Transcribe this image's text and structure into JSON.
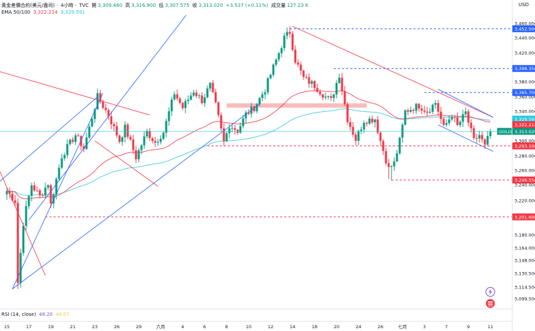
{
  "header": {
    "symbol_desc": "黃金差價合約(美元/盎司)",
    "interval": "4小時",
    "source": "TVC",
    "open_label": "開",
    "open": "3,309.460",
    "high_label": "高",
    "high": "3,316.900",
    "low_label": "低",
    "low": "3,307.575",
    "close_label": "收",
    "close": "3,313.020",
    "change": "+3.537 (+0.11%)",
    "volume_label": "成交量",
    "volume": "127.23 K",
    "currency": "USD"
  },
  "ema_legend": {
    "label": "EMA 50/100",
    "ema50": "3,322.214",
    "ema100": "3,329.591"
  },
  "rsi_legend": {
    "label": "RSI (14, close)",
    "value": "48.20",
    "signal": "44.07"
  },
  "tool_icons": [
    "lightning-icon",
    "alert-flag-icon"
  ],
  "colors": {
    "up": "#089981",
    "down": "#f23645",
    "ema50": "#f23645",
    "ema100": "#26c6da",
    "trendline_blue": "#2962ff",
    "trendline_red": "#f23645",
    "level_red": "#f23645",
    "level_blue": "#2962ff",
    "zone": "#f7a6a6",
    "current_price_line": "#26c6da"
  },
  "chart_data": {
    "type": "candlestick",
    "price_axis": {
      "ticks": [
        "3,460.000",
        "3,440.000",
        "3,420.000",
        "3,400.000",
        "3,380.000",
        "3,360.000",
        "3,340.000",
        "3,320.000",
        "3,300.000",
        "3,280.000",
        "3,260.000",
        "3,240.000",
        "3,220.000",
        "3,200.000",
        "3,180.000",
        "3,164.000",
        "3,148.000",
        "3,130.500",
        "3,114.500",
        "3,099.500"
      ],
      "tick_values": [
        3460,
        3440,
        3420,
        3400,
        3380,
        3360,
        3340,
        3320,
        3300,
        3280,
        3260,
        3240,
        3220,
        3200,
        3180,
        3164,
        3148,
        3130.5,
        3114.5,
        3099.5
      ]
    },
    "time_axis": {
      "ticks": [
        "15",
        "17",
        "19",
        "21",
        "23",
        "26",
        "29",
        "六月",
        "4",
        "6",
        "8",
        "10",
        "12",
        "14",
        "18",
        "20",
        "24",
        "26",
        "七月",
        "3",
        "7",
        "9",
        "11"
      ],
      "tick_index": [
        0,
        8,
        16,
        24,
        32,
        40,
        48,
        56,
        64,
        72,
        80,
        88,
        96,
        104,
        112,
        120,
        128,
        136,
        144,
        152,
        160,
        168,
        176
      ]
    },
    "price_labels": [
      {
        "text": "3,452.500",
        "value": 3452.5,
        "kind": "level-blue"
      },
      {
        "text": "3,398.350",
        "value": 3398.35,
        "kind": "level-blue"
      },
      {
        "text": "3,365.700",
        "value": 3365.7,
        "kind": "level-blue"
      },
      {
        "text": "3,329.591",
        "value": 3329.591,
        "kind": "ema100"
      },
      {
        "text": "3,322.214",
        "value": 3322.214,
        "kind": "ema50"
      },
      {
        "text": "3,313.020",
        "value": 3313.02,
        "kind": "last"
      },
      {
        "text": "3,293.198",
        "value": 3293.198,
        "kind": "level-red"
      },
      {
        "text": "3,246.550",
        "value": 3246.55,
        "kind": "level-red"
      },
      {
        "text": "3,201.680",
        "value": 3201.68,
        "kind": "level-red"
      }
    ],
    "symbol_tag": "GOLD",
    "levels": [
      {
        "value": 3452.5,
        "from": 103,
        "color": "blue"
      },
      {
        "value": 3398.35,
        "from": 119,
        "color": "blue"
      },
      {
        "value": 3365.7,
        "from": 152,
        "color": "blue"
      },
      {
        "value": 3293.198,
        "from": 73,
        "color": "red"
      },
      {
        "value": 3246.55,
        "from": 140,
        "color": "red"
      },
      {
        "value": 3201.68,
        "from": 14,
        "color": "red"
      }
    ],
    "zone": {
      "from": 80,
      "to": 131,
      "low": 3345,
      "high": 3351
    },
    "anchors": [
      {
        "i": 0,
        "p": 3232
      },
      {
        "i": 3,
        "p": 3220
      },
      {
        "i": 4,
        "p": 3120
      },
      {
        "i": 6,
        "p": 3195
      },
      {
        "i": 9,
        "p": 3240
      },
      {
        "i": 12,
        "p": 3225
      },
      {
        "i": 15,
        "p": 3242
      },
      {
        "i": 16,
        "p": 3215
      },
      {
        "i": 20,
        "p": 3280
      },
      {
        "i": 25,
        "p": 3308
      },
      {
        "i": 28,
        "p": 3290
      },
      {
        "i": 33,
        "p": 3360
      },
      {
        "i": 37,
        "p": 3335
      },
      {
        "i": 41,
        "p": 3300
      },
      {
        "i": 43,
        "p": 3318
      },
      {
        "i": 47,
        "p": 3278
      },
      {
        "i": 51,
        "p": 3312
      },
      {
        "i": 54,
        "p": 3298
      },
      {
        "i": 57,
        "p": 3312
      },
      {
        "i": 61,
        "p": 3365
      },
      {
        "i": 64,
        "p": 3345
      },
      {
        "i": 68,
        "p": 3368
      },
      {
        "i": 71,
        "p": 3355
      },
      {
        "i": 74,
        "p": 3375
      },
      {
        "i": 76,
        "p": 3348
      },
      {
        "i": 79,
        "p": 3298
      },
      {
        "i": 81,
        "p": 3322
      },
      {
        "i": 84,
        "p": 3314
      },
      {
        "i": 87,
        "p": 3336
      },
      {
        "i": 90,
        "p": 3345
      },
      {
        "i": 94,
        "p": 3370
      },
      {
        "i": 97,
        "p": 3400
      },
      {
        "i": 101,
        "p": 3440
      },
      {
        "i": 103,
        "p": 3448
      },
      {
        "i": 105,
        "p": 3410
      },
      {
        "i": 108,
        "p": 3385
      },
      {
        "i": 112,
        "p": 3375
      },
      {
        "i": 116,
        "p": 3360
      },
      {
        "i": 118,
        "p": 3355
      },
      {
        "i": 121,
        "p": 3390
      },
      {
        "i": 124,
        "p": 3330
      },
      {
        "i": 127,
        "p": 3302
      },
      {
        "i": 130,
        "p": 3328
      },
      {
        "i": 134,
        "p": 3330
      },
      {
        "i": 136,
        "p": 3300
      },
      {
        "i": 139,
        "p": 3262
      },
      {
        "i": 141,
        "p": 3270
      },
      {
        "i": 143,
        "p": 3300
      },
      {
        "i": 145,
        "p": 3340
      },
      {
        "i": 150,
        "p": 3348
      },
      {
        "i": 153,
        "p": 3340
      },
      {
        "i": 156,
        "p": 3352
      },
      {
        "i": 159,
        "p": 3318
      },
      {
        "i": 162,
        "p": 3336
      },
      {
        "i": 164,
        "p": 3320
      },
      {
        "i": 167,
        "p": 3338
      },
      {
        "i": 170,
        "p": 3300
      },
      {
        "i": 172,
        "p": 3308
      },
      {
        "i": 174,
        "p": 3292
      },
      {
        "i": 176,
        "p": 3313
      }
    ],
    "trendlines": [
      {
        "a": [
          2,
          3112
        ],
        "b": [
          92,
          3350
        ],
        "color": "blue"
      },
      {
        "a": [
          -8,
          3228
        ],
        "b": [
          33,
          3360
        ],
        "color": "blue"
      },
      {
        "a": [
          2,
          3112
        ],
        "b": [
          35,
          3365
        ],
        "color": "blue"
      },
      {
        "a": [
          8,
          3198
        ],
        "b": [
          67,
          3480
        ],
        "color": "blue"
      },
      {
        "a": [
          -8,
          3400
        ],
        "b": [
          52,
          3335
        ],
        "color": "red"
      },
      {
        "a": [
          -8,
          3305
        ],
        "b": [
          14,
          3128
        ],
        "color": "red"
      },
      {
        "a": [
          104,
          3456
        ],
        "b": [
          177,
          3332
        ],
        "color": "red"
      },
      {
        "a": [
          32,
          3300
        ],
        "b": [
          55,
          3238
        ],
        "color": "red"
      },
      {
        "a": [
          157,
          3370
        ],
        "b": [
          177,
          3332
        ],
        "color": "blue"
      },
      {
        "a": [
          157,
          3322
        ],
        "b": [
          177,
          3286
        ],
        "color": "blue"
      }
    ]
  }
}
